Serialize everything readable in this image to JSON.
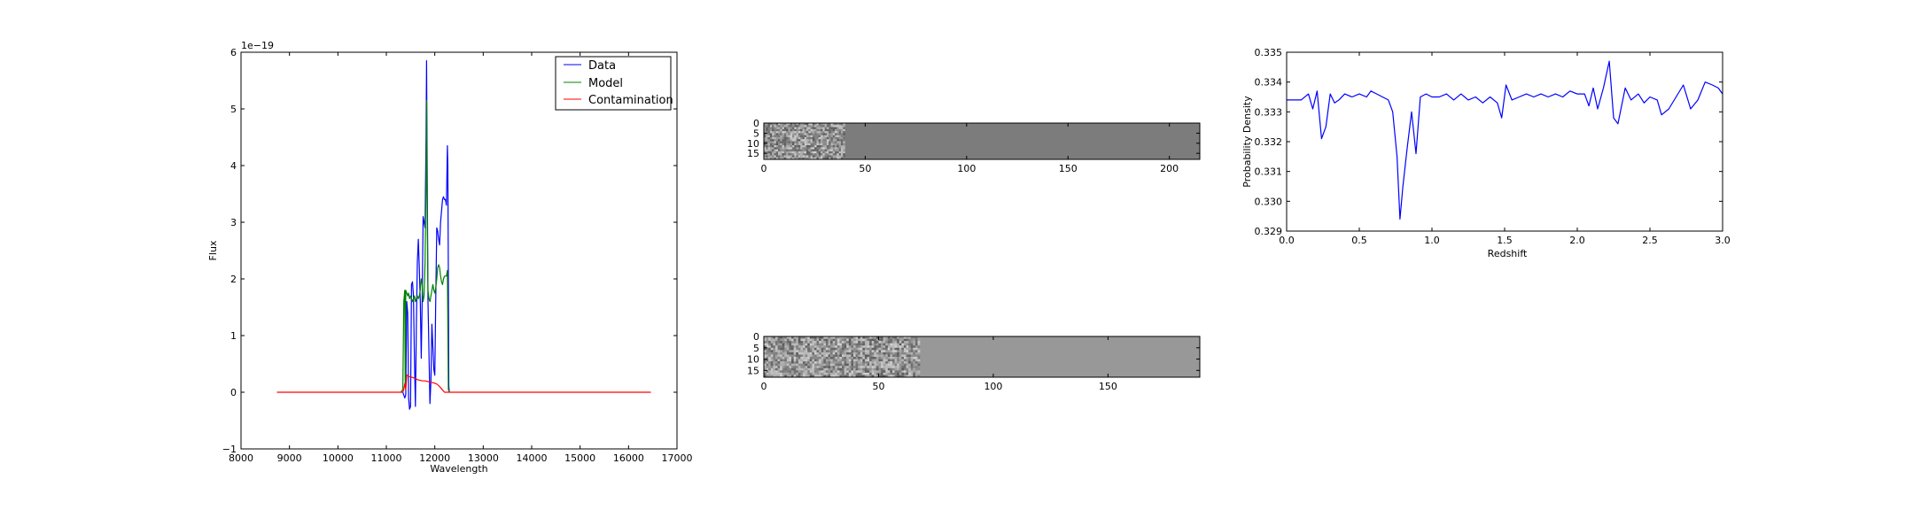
{
  "chart_data": [
    {
      "type": "line",
      "panel": "spectrum",
      "xlabel": "Wavelength",
      "ylabel": "Flux",
      "offset_text": "1e−19",
      "xlim": [
        8000,
        17000
      ],
      "ylim": [
        -1,
        6
      ],
      "xticks": [
        "8000",
        "9000",
        "10000",
        "11000",
        "12000",
        "13000",
        "14000",
        "15000",
        "16000",
        "17000"
      ],
      "yticks": [
        "−1",
        "0",
        "1",
        "2",
        "3",
        "4",
        "5",
        "6"
      ],
      "legend_position": "top-right",
      "series": [
        {
          "name": "Data",
          "color": "#0000ff",
          "points": [
            [
              11340,
              0
            ],
            [
              11360,
              -0.05
            ],
            [
              11380,
              -0.1
            ],
            [
              11400,
              -0.05
            ],
            [
              11420,
              1.6
            ],
            [
              11440,
              1.4
            ],
            [
              11460,
              -0.1
            ],
            [
              11480,
              -0.3
            ],
            [
              11500,
              -0.25
            ],
            [
              11520,
              1.9
            ],
            [
              11540,
              1.95
            ],
            [
              11560,
              1.7
            ],
            [
              11580,
              0.6
            ],
            [
              11600,
              -0.25
            ],
            [
              11620,
              1.2
            ],
            [
              11640,
              2.3
            ],
            [
              11660,
              2.7
            ],
            [
              11680,
              2.2
            ],
            [
              11700,
              1.6
            ],
            [
              11720,
              0.6
            ],
            [
              11740,
              1.7
            ],
            [
              11760,
              3.1
            ],
            [
              11780,
              3.0
            ],
            [
              11800,
              2.9
            ],
            [
              11820,
              4.5
            ],
            [
              11830,
              5.85
            ],
            [
              11840,
              4.4
            ],
            [
              11860,
              1.6
            ],
            [
              11880,
              0.7
            ],
            [
              11900,
              -0.2
            ],
            [
              11920,
              0.2
            ],
            [
              11940,
              1.2
            ],
            [
              11960,
              0.8
            ],
            [
              11980,
              0.4
            ],
            [
              12000,
              0.3
            ],
            [
              12020,
              1.7
            ],
            [
              12040,
              2.9
            ],
            [
              12060,
              2.85
            ],
            [
              12080,
              2.7
            ],
            [
              12100,
              2.6
            ],
            [
              12120,
              3.0
            ],
            [
              12140,
              3.2
            ],
            [
              12160,
              3.4
            ],
            [
              12180,
              3.45
            ],
            [
              12200,
              3.4
            ],
            [
              12220,
              3.4
            ],
            [
              12240,
              3.3
            ],
            [
              12260,
              4.35
            ],
            [
              12270,
              4.0
            ],
            [
              12280,
              2.0
            ],
            [
              12290,
              0.1
            ],
            [
              12300,
              0
            ]
          ]
        },
        {
          "name": "Model",
          "color": "#008000",
          "points": [
            [
              11300,
              0
            ],
            [
              11340,
              0.05
            ],
            [
              11360,
              1.6
            ],
            [
              11380,
              1.8
            ],
            [
              11390,
              0.1
            ],
            [
              11400,
              1.8
            ],
            [
              11420,
              1.75
            ],
            [
              11440,
              1.7
            ],
            [
              11460,
              1.75
            ],
            [
              11480,
              1.65
            ],
            [
              11500,
              1.7
            ],
            [
              11520,
              1.65
            ],
            [
              11540,
              1.6
            ],
            [
              11560,
              1.65
            ],
            [
              11580,
              1.7
            ],
            [
              11600,
              1.6
            ],
            [
              11620,
              1.65
            ],
            [
              11640,
              1.7
            ],
            [
              11660,
              1.65
            ],
            [
              11680,
              1.7
            ],
            [
              11700,
              1.8
            ],
            [
              11720,
              2.0
            ],
            [
              11740,
              1.9
            ],
            [
              11760,
              1.6
            ],
            [
              11780,
              1.7
            ],
            [
              11800,
              2.3
            ],
            [
              11820,
              3.8
            ],
            [
              11830,
              5.15
            ],
            [
              11840,
              3.4
            ],
            [
              11860,
              1.8
            ],
            [
              11880,
              1.65
            ],
            [
              11900,
              1.6
            ],
            [
              11920,
              1.7
            ],
            [
              11940,
              1.8
            ],
            [
              11960,
              1.9
            ],
            [
              11980,
              1.8
            ],
            [
              12000,
              1.75
            ],
            [
              12020,
              1.85
            ],
            [
              12040,
              2.0
            ],
            [
              12060,
              2.2
            ],
            [
              12080,
              2.25
            ],
            [
              12100,
              2.2
            ],
            [
              12120,
              2.05
            ],
            [
              12140,
              1.95
            ],
            [
              12160,
              1.9
            ],
            [
              12180,
              2.0
            ],
            [
              12200,
              2.05
            ],
            [
              12220,
              2.05
            ],
            [
              12240,
              2.05
            ],
            [
              12250,
              2.1
            ],
            [
              12260,
              2.15
            ],
            [
              12280,
              0.05
            ],
            [
              12300,
              0
            ]
          ]
        },
        {
          "name": "Contamination",
          "color": "#ff0000",
          "points": [
            [
              8740,
              0
            ],
            [
              11340,
              0
            ],
            [
              11360,
              0.05
            ],
            [
              11380,
              0.15
            ],
            [
              11400,
              0.05
            ],
            [
              11420,
              0.3
            ],
            [
              11440,
              0.3
            ],
            [
              11460,
              0.28
            ],
            [
              11500,
              0.27
            ],
            [
              11550,
              0.26
            ],
            [
              11600,
              0.24
            ],
            [
              11650,
              0.22
            ],
            [
              11700,
              0.21
            ],
            [
              11750,
              0.2
            ],
            [
              11800,
              0.2
            ],
            [
              11850,
              0.19
            ],
            [
              11900,
              0.18
            ],
            [
              11950,
              0.17
            ],
            [
              12000,
              0.16
            ],
            [
              12050,
              0.14
            ],
            [
              12100,
              0.1
            ],
            [
              12150,
              0.05
            ],
            [
              12200,
              0.0
            ],
            [
              12300,
              0
            ],
            [
              16460,
              0
            ]
          ]
        }
      ]
    },
    {
      "type": "heatmap",
      "panel": "2d-spectrum-top",
      "xlim": [
        0,
        215
      ],
      "ylim": [
        0,
        18
      ],
      "xticks": [
        "0",
        "50",
        "100",
        "150",
        "200"
      ],
      "yticks": [
        "0",
        "5",
        "10",
        "15"
      ],
      "textured_until": 40,
      "background_color": "#7c7c7c"
    },
    {
      "type": "heatmap",
      "panel": "2d-spectrum-bottom",
      "xlim": [
        0,
        190
      ],
      "ylim": [
        0,
        18
      ],
      "xticks": [
        "0",
        "50",
        "100",
        "150"
      ],
      "yticks": [
        "0",
        "5",
        "10",
        "15"
      ],
      "textured_until": 68,
      "background_color": "#989898"
    },
    {
      "type": "line",
      "panel": "redshift-pdf",
      "xlabel": "Redshift",
      "ylabel": "Probability Density",
      "xlim": [
        0.0,
        3.0
      ],
      "ylim": [
        0.329,
        0.335
      ],
      "xticks": [
        "0.0",
        "0.5",
        "1.0",
        "1.5",
        "2.0",
        "2.5",
        "3.0"
      ],
      "yticks": [
        "0.329",
        "0.330",
        "0.331",
        "0.332",
        "0.333",
        "0.334",
        "0.335"
      ],
      "series": [
        {
          "color": "#0000ff",
          "points": [
            [
              0.0,
              0.3334
            ],
            [
              0.05,
              0.3334
            ],
            [
              0.1,
              0.3334
            ],
            [
              0.15,
              0.3336
            ],
            [
              0.18,
              0.3331
            ],
            [
              0.21,
              0.3337
            ],
            [
              0.24,
              0.3321
            ],
            [
              0.27,
              0.3325
            ],
            [
              0.3,
              0.3336
            ],
            [
              0.33,
              0.3333
            ],
            [
              0.36,
              0.3334
            ],
            [
              0.4,
              0.3336
            ],
            [
              0.45,
              0.3335
            ],
            [
              0.5,
              0.3336
            ],
            [
              0.55,
              0.3335
            ],
            [
              0.58,
              0.3337
            ],
            [
              0.62,
              0.3336
            ],
            [
              0.66,
              0.3335
            ],
            [
              0.7,
              0.3334
            ],
            [
              0.73,
              0.333
            ],
            [
              0.76,
              0.3315
            ],
            [
              0.78,
              0.3294
            ],
            [
              0.8,
              0.3305
            ],
            [
              0.83,
              0.3318
            ],
            [
              0.86,
              0.333
            ],
            [
              0.89,
              0.3316
            ],
            [
              0.92,
              0.3335
            ],
            [
              0.96,
              0.3336
            ],
            [
              1.0,
              0.3335
            ],
            [
              1.05,
              0.3335
            ],
            [
              1.1,
              0.3336
            ],
            [
              1.15,
              0.3334
            ],
            [
              1.2,
              0.3336
            ],
            [
              1.25,
              0.3334
            ],
            [
              1.3,
              0.3335
            ],
            [
              1.35,
              0.3333
            ],
            [
              1.4,
              0.3335
            ],
            [
              1.45,
              0.3333
            ],
            [
              1.48,
              0.3328
            ],
            [
              1.51,
              0.3339
            ],
            [
              1.55,
              0.3334
            ],
            [
              1.6,
              0.3335
            ],
            [
              1.65,
              0.3336
            ],
            [
              1.7,
              0.3335
            ],
            [
              1.75,
              0.3336
            ],
            [
              1.8,
              0.3335
            ],
            [
              1.85,
              0.3336
            ],
            [
              1.9,
              0.3335
            ],
            [
              1.95,
              0.3337
            ],
            [
              2.0,
              0.3336
            ],
            [
              2.05,
              0.3336
            ],
            [
              2.08,
              0.3332
            ],
            [
              2.11,
              0.3338
            ],
            [
              2.14,
              0.3331
            ],
            [
              2.18,
              0.3338
            ],
            [
              2.22,
              0.3347
            ],
            [
              2.25,
              0.3328
            ],
            [
              2.28,
              0.3326
            ],
            [
              2.33,
              0.3338
            ],
            [
              2.37,
              0.3334
            ],
            [
              2.42,
              0.3336
            ],
            [
              2.46,
              0.3333
            ],
            [
              2.5,
              0.3335
            ],
            [
              2.55,
              0.3334
            ],
            [
              2.58,
              0.3329
            ],
            [
              2.63,
              0.3331
            ],
            [
              2.68,
              0.3335
            ],
            [
              2.73,
              0.3339
            ],
            [
              2.78,
              0.3331
            ],
            [
              2.83,
              0.3334
            ],
            [
              2.88,
              0.334
            ],
            [
              2.93,
              0.3339
            ],
            [
              2.97,
              0.3338
            ],
            [
              3.0,
              0.3336
            ]
          ]
        }
      ]
    }
  ]
}
